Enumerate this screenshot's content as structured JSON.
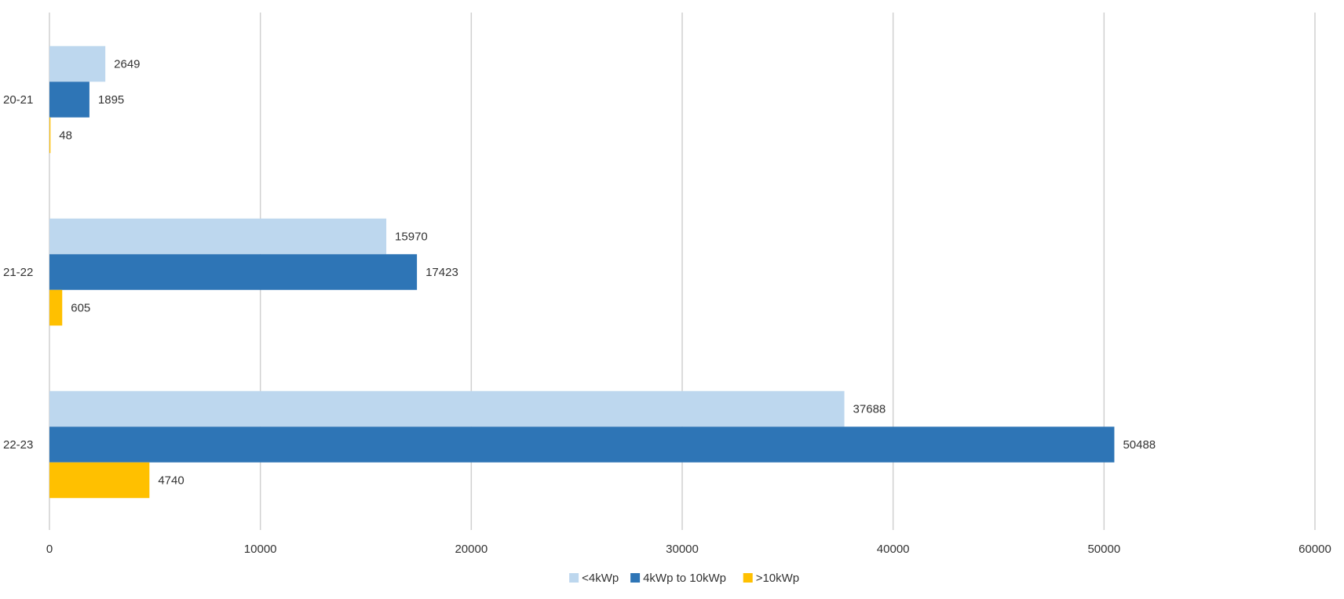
{
  "chart_data": {
    "type": "bar",
    "orientation": "horizontal",
    "categories": [
      "20-21",
      "21-22",
      "22-23"
    ],
    "series": [
      {
        "name": "<4kWp",
        "color": "#bdd7ee",
        "values": [
          2649,
          15970,
          37688
        ]
      },
      {
        "name": "4kWp to 10kWp",
        "color": "#2e75b6",
        "values": [
          1895,
          17423,
          50488
        ]
      },
      {
        "name": ">10kWp",
        "color": "#ffc000",
        "values": [
          48,
          605,
          4740
        ]
      }
    ],
    "xlim": [
      0,
      60000
    ],
    "xticks": [
      0,
      10000,
      20000,
      30000,
      40000,
      50000,
      60000
    ],
    "title": "",
    "xlabel": "",
    "ylabel": "",
    "grid": "vertical",
    "legend_position": "bottom-center",
    "data_labels": true
  }
}
